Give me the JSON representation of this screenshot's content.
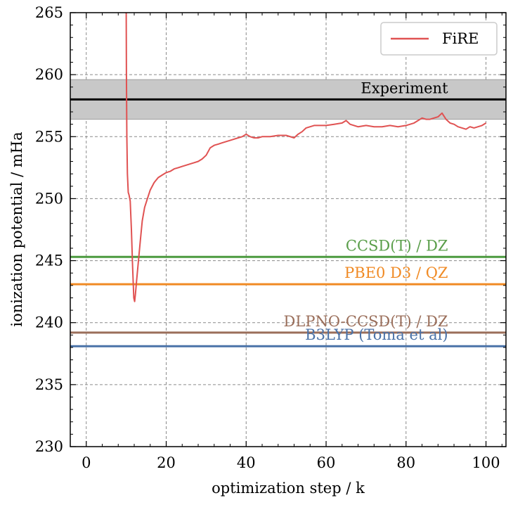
{
  "chart_data": {
    "type": "line",
    "xlabel": "optimization step / k",
    "ylabel": "ionization potential / mHa",
    "xlim": [
      -4,
      105
    ],
    "ylim": [
      230,
      265
    ],
    "xticks": [
      0,
      20,
      40,
      60,
      80,
      100
    ],
    "yticks": [
      230,
      235,
      240,
      245,
      250,
      255,
      260,
      265
    ],
    "grid": true,
    "legend_position": "top-right",
    "series": [
      {
        "name": "FiRE",
        "color": "#e05252",
        "x": [
          10,
          10.05,
          10.15,
          10.3,
          10.5,
          10.7,
          11.0,
          11.3,
          11.6,
          11.9,
          12.1,
          12.3,
          12.6,
          13.0,
          13.5,
          14.0,
          14.6,
          15.2,
          16.0,
          17.0,
          18.0,
          19.0,
          20.0,
          21.0,
          22.0,
          23.0,
          24.0,
          25.0,
          26.0,
          27.0,
          28.0,
          29.0,
          30.0,
          31.0,
          32.0,
          33.0,
          34.0,
          35.0,
          36.0,
          37.0,
          38.0,
          39.0,
          40.0,
          41.0,
          42.0,
          43.0,
          44.0,
          45.0,
          46.0,
          48.0,
          50.0,
          52.0,
          53.0,
          54.0,
          55.0,
          56.0,
          57.0,
          58.0,
          60.0,
          62.0,
          64.0,
          65.0,
          66.0,
          68.0,
          70.0,
          72.0,
          74.0,
          76.0,
          78.0,
          80.0,
          81.0,
          82.0,
          83.0,
          84.0,
          85.0,
          86.0,
          87.0,
          88.0,
          89.0,
          90.0,
          91.0,
          92.0,
          93.0,
          94.0,
          95.0,
          96.0,
          97.0,
          98.0,
          99.0,
          100.0
        ],
        "y": [
          265,
          260,
          255,
          252,
          250.5,
          250.3,
          249.8,
          247.5,
          244.5,
          242.0,
          241.7,
          242.3,
          243.4,
          244.8,
          246.5,
          248.2,
          249.3,
          249.9,
          250.7,
          251.3,
          251.7,
          251.9,
          252.1,
          252.2,
          252.4,
          252.5,
          252.6,
          252.7,
          252.8,
          252.9,
          253.0,
          253.2,
          253.5,
          254.1,
          254.3,
          254.4,
          254.5,
          254.6,
          254.7,
          254.8,
          254.9,
          255.0,
          255.2,
          255.0,
          254.9,
          254.9,
          255.0,
          255.0,
          255.0,
          255.1,
          255.1,
          254.9,
          255.2,
          255.4,
          255.7,
          255.8,
          255.9,
          255.9,
          255.9,
          256.0,
          256.1,
          256.3,
          256.0,
          255.8,
          255.9,
          255.8,
          255.8,
          255.9,
          255.8,
          255.9,
          256.0,
          256.1,
          256.3,
          256.5,
          256.4,
          256.4,
          256.5,
          256.6,
          256.9,
          256.4,
          256.1,
          256.0,
          255.8,
          255.7,
          255.6,
          255.8,
          255.7,
          255.8,
          255.9,
          256.1
        ]
      }
    ],
    "reference_lines": [
      {
        "label": "Experiment",
        "value": 258.0,
        "color": "#000000",
        "band": [
          256.4,
          259.6
        ],
        "band_color": "#c8c8c8",
        "label_color": "#000000"
      },
      {
        "label": "CCSD(T) / DZ",
        "value": 245.3,
        "color": "#4c9a3f",
        "label_color": "#5a9e4a"
      },
      {
        "label": "PBE0 D3 / QZ",
        "value": 243.1,
        "color": "#f08a24",
        "label_color": "#f08a24"
      },
      {
        "label": "DLPNO-CCSD(T) / DZ",
        "value": 239.2,
        "color": "#9a6e5a",
        "label_color": "#9a6e5a"
      },
      {
        "label": "B3LYP (Toma et al)",
        "value": 238.1,
        "color": "#4a72a8",
        "label_color": "#4a72a8"
      }
    ]
  }
}
